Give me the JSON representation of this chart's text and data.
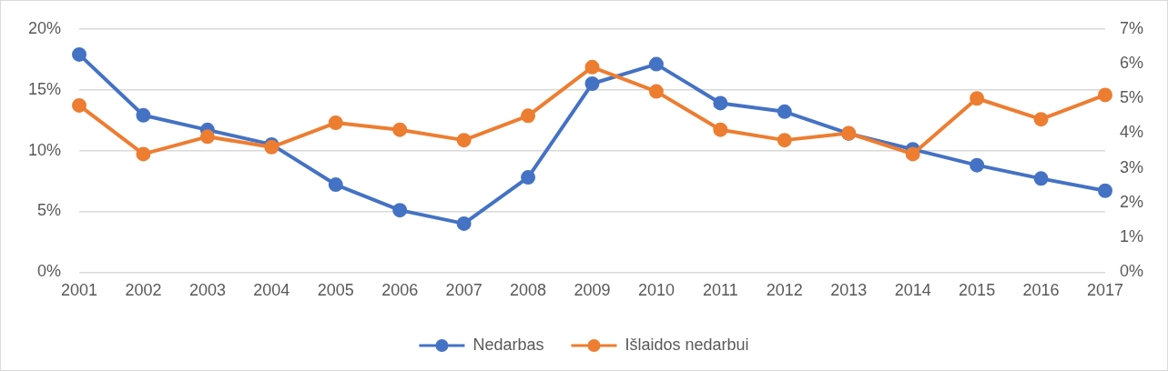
{
  "chart_data": {
    "type": "line",
    "categories": [
      "2001",
      "2002",
      "2003",
      "2004",
      "2005",
      "2006",
      "2007",
      "2008",
      "2009",
      "2010",
      "2011",
      "2012",
      "2013",
      "2014",
      "2015",
      "2016",
      "2017"
    ],
    "series": [
      {
        "name": "Nedarbas",
        "color": "#4472c4",
        "values": [
          17.9,
          12.9,
          11.7,
          10.5,
          7.2,
          5.1,
          4.0,
          7.8,
          15.5,
          17.1,
          13.9,
          13.2,
          11.4,
          10.1,
          8.8,
          7.7,
          6.7
        ]
      },
      {
        "name": "Išlaidos nedarbui",
        "color": "#ed7d31",
        "axis": "y2",
        "values": [
          4.8,
          3.4,
          3.9,
          3.6,
          4.3,
          4.1,
          3.8,
          4.5,
          5.9,
          5.2,
          4.1,
          3.8,
          4.0,
          3.4,
          5.0,
          4.4,
          5.1
        ]
      }
    ],
    "ylim": [
      0,
      20
    ],
    "yticks": [
      {
        "value": 0,
        "label": "0%"
      },
      {
        "value": 5,
        "label": "5%"
      },
      {
        "value": 10,
        "label": "10%"
      },
      {
        "value": 15,
        "label": "15%"
      },
      {
        "value": 20,
        "label": "20%"
      }
    ],
    "y2lim": [
      0,
      7
    ],
    "y2ticks": [
      {
        "value": 0,
        "label": "0%"
      },
      {
        "value": 1,
        "label": "1%"
      },
      {
        "value": 2,
        "label": "2%"
      },
      {
        "value": 3,
        "label": "3%"
      },
      {
        "value": 4,
        "label": "4%"
      },
      {
        "value": 5,
        "label": "5%"
      },
      {
        "value": 6,
        "label": "6%"
      },
      {
        "value": 7,
        "label": "7%"
      }
    ],
    "grid": "y",
    "legend": "bottom",
    "marker": "circle",
    "line_style": "solid"
  }
}
